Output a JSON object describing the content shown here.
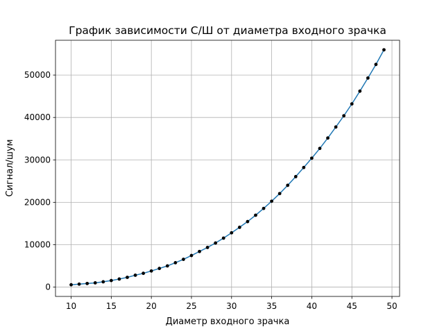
{
  "chart_data": {
    "type": "line",
    "title": "График зависимости С/Ш от диаметра входного зрачка",
    "xlabel": "Диаметр входного зрачка",
    "ylabel": "Сигнал/шум",
    "xlim": [
      8.05,
      50.95
    ],
    "ylim": [
      -2200,
      58200
    ],
    "x_ticks": [
      10,
      15,
      20,
      25,
      30,
      35,
      40,
      45,
      50
    ],
    "y_ticks": [
      0,
      10000,
      20000,
      30000,
      40000,
      50000
    ],
    "grid": true,
    "line_color": "#1f77b4",
    "marker_color": "#000000",
    "series": [
      {
        "x": [
          10,
          11,
          12,
          13,
          14,
          15,
          16,
          17,
          18,
          19,
          20,
          21,
          22,
          23,
          24,
          25,
          26,
          27,
          28,
          29,
          30,
          31,
          32,
          33,
          34,
          35,
          36,
          37,
          38,
          39,
          40,
          41,
          42,
          43,
          44,
          45,
          46,
          47,
          48,
          49
        ],
        "y": [
          550,
          700,
          850,
          1000,
          1250,
          1550,
          1900,
          2300,
          2800,
          3250,
          3800,
          4400,
          5000,
          5750,
          6550,
          7450,
          8400,
          9350,
          10400,
          11550,
          12800,
          14100,
          15450,
          16950,
          18550,
          20250,
          22050,
          24000,
          26050,
          28200,
          30400,
          32700,
          35150,
          37750,
          40400,
          43200,
          46200,
          49300,
          52500,
          55950
        ]
      }
    ]
  }
}
